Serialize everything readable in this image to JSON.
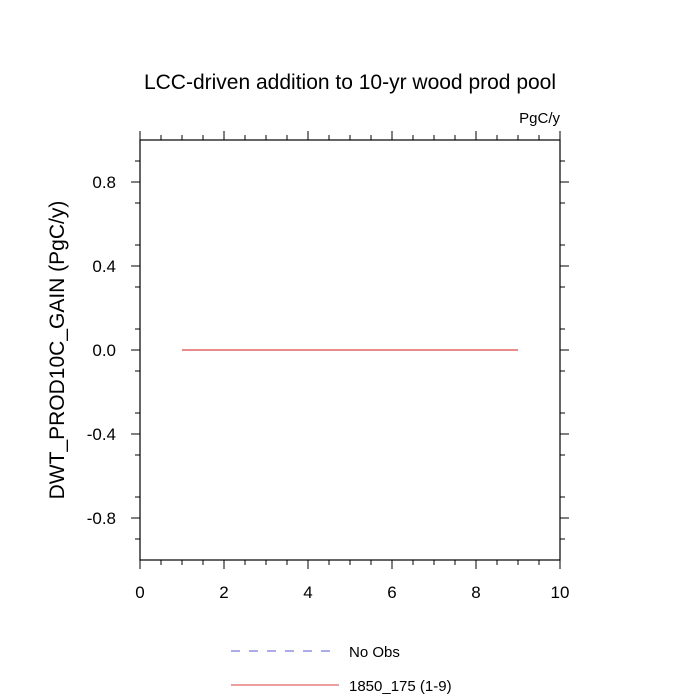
{
  "chart_data": {
    "type": "line",
    "title": "LCC-driven addition to 10-yr wood prod pool",
    "units": "PgC/y",
    "ylabel": "DWT_PROD10C_GAIN  (PgC/y)",
    "xlabel": "",
    "xlim": [
      0,
      10
    ],
    "ylim": [
      -1,
      1
    ],
    "x_ticks": [
      0,
      2,
      4,
      6,
      8,
      10
    ],
    "y_ticks": [
      -0.8,
      -0.4,
      0.0,
      0.4,
      0.8
    ],
    "x_tick_labels": [
      "0",
      "2",
      "4",
      "6",
      "8",
      "10"
    ],
    "y_tick_labels": [
      "-0.8",
      "-0.4",
      "0.0",
      "0.4",
      "0.8"
    ],
    "grid": false,
    "legend_position": "bottom",
    "series": [
      {
        "name": "No Obs",
        "color": "#7b7bd8",
        "dash": "dashed",
        "x": [],
        "y": []
      },
      {
        "name": "1850_175 (1-9)",
        "color": "#e06666",
        "dash": "solid",
        "x": [
          1,
          2,
          3,
          4,
          5,
          6,
          7,
          8,
          9
        ],
        "y": [
          0,
          0,
          0,
          0,
          0,
          0,
          0,
          0,
          0
        ]
      }
    ]
  }
}
